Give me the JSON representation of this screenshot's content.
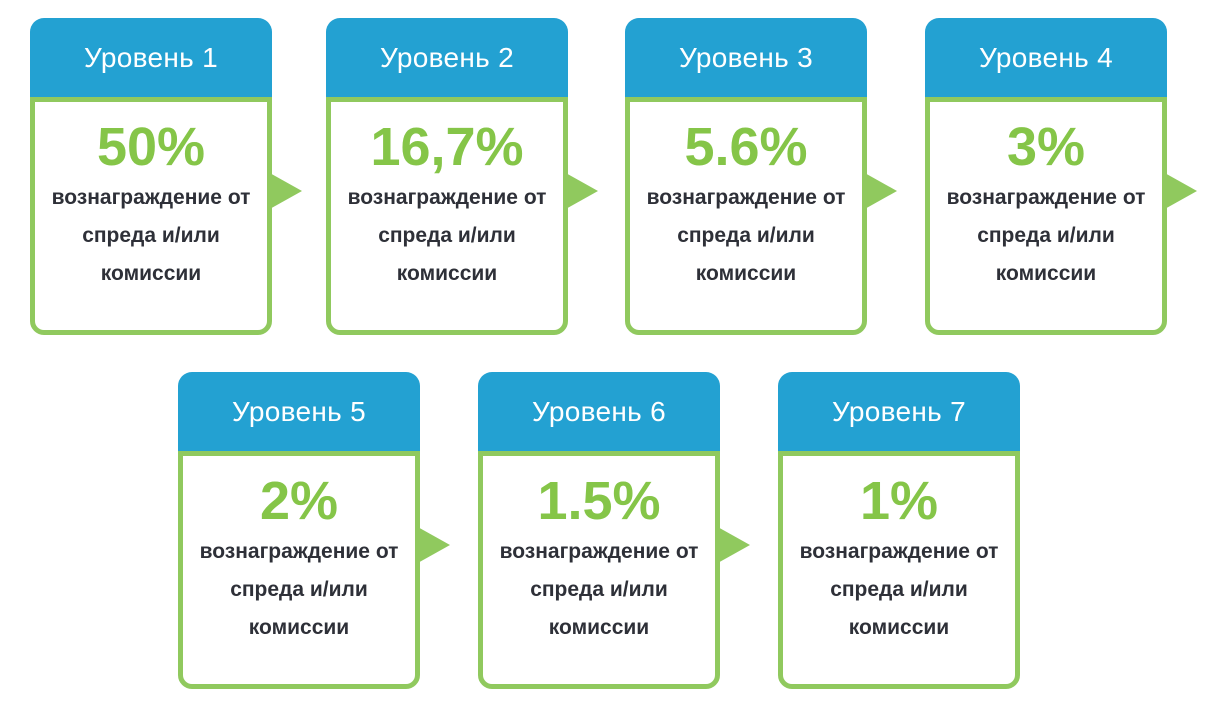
{
  "colors": {
    "header_blue": "#23a1d2",
    "border_green": "#90c95e",
    "percent_green": "#85c548",
    "text_dark": "#2e3038"
  },
  "cards": [
    {
      "title": "Уровень 1",
      "percent": "50%",
      "description": "вознаграждение от спреда и/или комиссии",
      "has_arrow": true
    },
    {
      "title": "Уровень 2",
      "percent": "16,7%",
      "description": "вознаграждение от спреда и/или комиссии",
      "has_arrow": true
    },
    {
      "title": "Уровень 3",
      "percent": "5.6%",
      "description": "вознаграждение от спреда и/или комиссии",
      "has_arrow": true
    },
    {
      "title": "Уровень 4",
      "percent": "3%",
      "description": "вознаграждение от спреда и/или комиссии",
      "has_arrow": true
    },
    {
      "title": "Уровень 5",
      "percent": "2%",
      "description": "вознаграждение от спреда и/или комиссии",
      "has_arrow": true
    },
    {
      "title": "Уровень 6",
      "percent": "1.5%",
      "description": "вознаграждение от спреда и/или комиссии",
      "has_arrow": true
    },
    {
      "title": "Уровень 7",
      "percent": "1%",
      "description": "вознаграждение от спреда и/или комиссии",
      "has_arrow": false
    }
  ]
}
